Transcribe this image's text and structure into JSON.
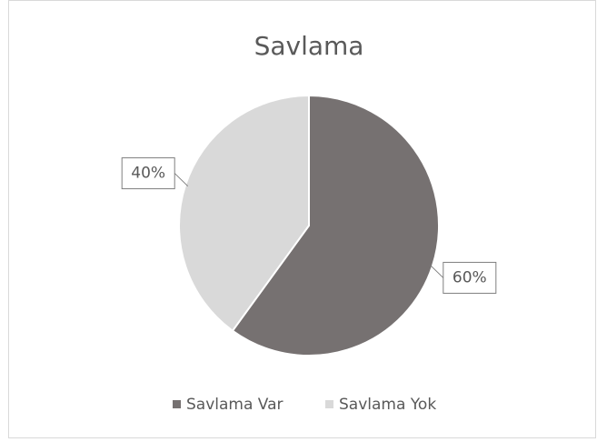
{
  "chart_data": {
    "type": "pie",
    "title": "Savlama",
    "categories": [
      "Savlama Var",
      "Savlama Yok"
    ],
    "values": [
      60,
      40
    ],
    "value_labels": [
      "60%",
      "40%"
    ],
    "colors": [
      "#767171",
      "#d9d9d9"
    ],
    "legend": "bottom"
  }
}
